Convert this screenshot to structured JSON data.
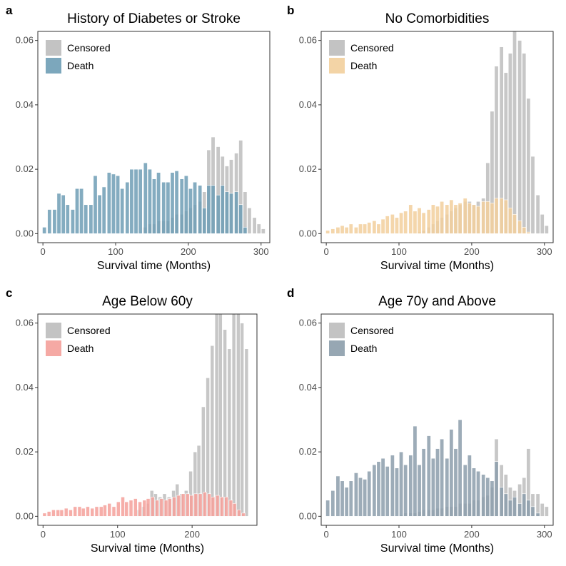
{
  "chart_data": [
    {
      "panel": "a",
      "type": "bar",
      "title": "History of Diabetes or Stroke",
      "xlabel": "Survival time (Months)",
      "ylabel": "",
      "xlim": [
        -7,
        312
      ],
      "ylim": [
        -0.0028,
        0.0628
      ],
      "xticks": [
        0,
        100,
        200,
        300
      ],
      "yticks": [
        0.0,
        0.02,
        0.04,
        0.06
      ],
      "ytick_labels": [
        "0.00",
        "0.02",
        "0.04",
        "0.06"
      ],
      "bin_width": 6.25,
      "legend": {
        "position": "top-left",
        "entries": [
          "Censored",
          "Death"
        ]
      },
      "colors": {
        "Censored": "#bdbdbd",
        "Death": "#6e9db5"
      },
      "series": [
        {
          "name": "Censored",
          "x": [
            140,
            147,
            153,
            160,
            166,
            172,
            178,
            184,
            191,
            197,
            203,
            209,
            216,
            222,
            228,
            234,
            241,
            247,
            253,
            259,
            266,
            272,
            278,
            284,
            291,
            297,
            303
          ],
          "values": [
            0.002,
            0.003,
            0.003,
            0.004,
            0.004,
            0.004,
            0.005,
            0.006,
            0.006,
            0.007,
            0.008,
            0.009,
            0.01,
            0.013,
            0.026,
            0.03,
            0.027,
            0.024,
            0.021,
            0.023,
            0.025,
            0.029,
            0.013,
            0.008,
            0.005,
            0.003,
            0.0015
          ]
        },
        {
          "name": "Death",
          "x": [
            2,
            9,
            16,
            22,
            28,
            34,
            41,
            47,
            53,
            59,
            66,
            72,
            78,
            84,
            91,
            97,
            103,
            109,
            116,
            122,
            128,
            134,
            141,
            147,
            153,
            159,
            166,
            172,
            178,
            184,
            191,
            197,
            203,
            209,
            216,
            222,
            228,
            234,
            241,
            247,
            253,
            259,
            266,
            272,
            278
          ],
          "values": [
            0.002,
            0.0075,
            0.0075,
            0.0125,
            0.012,
            0.009,
            0.0075,
            0.014,
            0.014,
            0.009,
            0.009,
            0.018,
            0.012,
            0.0145,
            0.019,
            0.0185,
            0.018,
            0.014,
            0.016,
            0.02,
            0.02,
            0.02,
            0.022,
            0.02,
            0.017,
            0.019,
            0.016,
            0.016,
            0.019,
            0.0195,
            0.017,
            0.018,
            0.014,
            0.016,
            0.015,
            0.008,
            0.015,
            0.015,
            0.012,
            0.015,
            0.013,
            0.0125,
            0.013,
            0.009,
            0.002
          ]
        }
      ]
    },
    {
      "panel": "b",
      "type": "bar",
      "title": "No Comorbidities",
      "xlabel": "Survival time (Months)",
      "ylabel": "",
      "xlim": [
        -7,
        312
      ],
      "ylim": [
        -0.0028,
        0.0628
      ],
      "xticks": [
        0,
        100,
        200,
        300
      ],
      "yticks": [
        0.0,
        0.02,
        0.04,
        0.06
      ],
      "ytick_labels": [
        "0.00",
        "0.02",
        "0.04",
        "0.06"
      ],
      "bin_width": 6.25,
      "legend": {
        "position": "top-left",
        "entries": [
          "Censored",
          "Death"
        ]
      },
      "colors": {
        "Censored": "#bdbdbd",
        "Death": "#f2cf9c"
      },
      "series": [
        {
          "name": "Censored",
          "x": [
            128,
            134,
            141,
            147,
            153,
            159,
            166,
            172,
            178,
            184,
            191,
            197,
            203,
            209,
            216,
            222,
            228,
            234,
            241,
            247,
            253,
            259,
            266,
            272,
            278,
            284,
            291,
            297,
            303
          ],
          "values": [
            0.0005,
            0.001,
            0.002,
            0.003,
            0.004,
            0.005,
            0.006,
            0.007,
            0.008,
            0.009,
            0.01,
            0.01,
            0.009,
            0.01,
            0.011,
            0.022,
            0.038,
            0.052,
            0.058,
            0.05,
            0.056,
            0.066,
            0.06,
            0.056,
            0.042,
            0.024,
            0.012,
            0.006,
            0.0025
          ]
        },
        {
          "name": "Death",
          "x": [
            2,
            9,
            16,
            22,
            28,
            34,
            41,
            47,
            53,
            59,
            66,
            72,
            78,
            84,
            91,
            97,
            103,
            109,
            116,
            122,
            128,
            134,
            141,
            147,
            153,
            159,
            166,
            172,
            178,
            184,
            191,
            197,
            203,
            209,
            216,
            222,
            228,
            234,
            241,
            247,
            253,
            259,
            266,
            272,
            278
          ],
          "values": [
            0.001,
            0.0015,
            0.002,
            0.0025,
            0.002,
            0.003,
            0.002,
            0.003,
            0.003,
            0.0035,
            0.004,
            0.003,
            0.0045,
            0.0055,
            0.006,
            0.005,
            0.0065,
            0.007,
            0.009,
            0.007,
            0.008,
            0.0065,
            0.0075,
            0.009,
            0.0085,
            0.01,
            0.009,
            0.0105,
            0.009,
            0.0095,
            0.011,
            0.0095,
            0.009,
            0.0085,
            0.01,
            0.01,
            0.0095,
            0.011,
            0.011,
            0.0105,
            0.008,
            0.006,
            0.004,
            0.002,
            0.0005
          ]
        }
      ]
    },
    {
      "panel": "c",
      "type": "bar",
      "title": "Age Below 60y",
      "xlabel": "Survival time (Months)",
      "ylabel": "",
      "xlim": [
        -7,
        287
      ],
      "ylim": [
        -0.0028,
        0.0628
      ],
      "xticks": [
        0,
        100,
        200
      ],
      "yticks": [
        0.0,
        0.02,
        0.04,
        0.06
      ],
      "ytick_labels": [
        "0.00",
        "0.02",
        "0.04",
        "0.06"
      ],
      "bin_width": 5.8,
      "legend": {
        "position": "top-left",
        "entries": [
          "Censored",
          "Death"
        ]
      },
      "colors": {
        "Censored": "#bdbdbd",
        "Death": "#f4a09a"
      },
      "series": [
        {
          "name": "Censored",
          "x": [
            128,
            134,
            140,
            146,
            151,
            157,
            163,
            169,
            175,
            180,
            186,
            192,
            198,
            204,
            209,
            215,
            221,
            227,
            233,
            238,
            244,
            250,
            256,
            262,
            267,
            273
          ],
          "values": [
            0.002,
            0.003,
            0.004,
            0.008,
            0.007,
            0.006,
            0.007,
            0.006,
            0.008,
            0.01,
            0.007,
            0.008,
            0.014,
            0.02,
            0.022,
            0.034,
            0.043,
            0.053,
            0.068,
            0.07,
            0.058,
            0.052,
            0.066,
            0.07,
            0.06,
            0.052
          ]
        },
        {
          "name": "Death",
          "x": [
            2,
            8,
            14,
            20,
            25,
            31,
            37,
            43,
            49,
            54,
            60,
            66,
            72,
            78,
            83,
            89,
            95,
            101,
            107,
            112,
            118,
            124,
            130,
            136,
            141,
            147,
            153,
            159,
            165,
            170,
            176,
            182,
            188,
            194,
            199,
            205,
            211,
            217,
            223,
            228,
            234,
            240,
            246,
            252,
            257,
            263,
            269
          ],
          "values": [
            0.001,
            0.0015,
            0.002,
            0.002,
            0.002,
            0.0025,
            0.002,
            0.003,
            0.003,
            0.0025,
            0.003,
            0.0025,
            0.003,
            0.003,
            0.0035,
            0.004,
            0.003,
            0.0045,
            0.006,
            0.0045,
            0.005,
            0.0055,
            0.0045,
            0.005,
            0.0055,
            0.006,
            0.005,
            0.0055,
            0.005,
            0.0055,
            0.006,
            0.0065,
            0.007,
            0.007,
            0.0065,
            0.007,
            0.007,
            0.0075,
            0.007,
            0.006,
            0.0065,
            0.006,
            0.006,
            0.005,
            0.004,
            0.002,
            0.001
          ]
        }
      ]
    },
    {
      "panel": "d",
      "type": "bar",
      "title": "Age 70y and Above",
      "xlabel": "Survival time (Months)",
      "ylabel": "",
      "xlim": [
        -7,
        312
      ],
      "ylim": [
        -0.0028,
        0.0628
      ],
      "xticks": [
        0,
        100,
        200,
        300
      ],
      "yticks": [
        0.0,
        0.02,
        0.04,
        0.06
      ],
      "ytick_labels": [
        "0.00",
        "0.02",
        "0.04",
        "0.06"
      ],
      "bin_width": 6.25,
      "legend": {
        "position": "top-left",
        "entries": [
          "Censored",
          "Death"
        ]
      },
      "colors": {
        "Censored": "#bdbdbd",
        "Death": "#8c9dab"
      },
      "series": [
        {
          "name": "Censored",
          "x": [
            103,
            109,
            116,
            122,
            128,
            134,
            141,
            147,
            153,
            159,
            166,
            172,
            178,
            184,
            191,
            197,
            203,
            209,
            216,
            222,
            228,
            234,
            241,
            247,
            253,
            259,
            266,
            272,
            278,
            284,
            291,
            297,
            303
          ],
          "values": [
            0.0005,
            0.001,
            0.001,
            0.001,
            0.0015,
            0.002,
            0.002,
            0.002,
            0.0025,
            0.0025,
            0.003,
            0.003,
            0.003,
            0.004,
            0.004,
            0.004,
            0.005,
            0.005,
            0.006,
            0.0065,
            0.009,
            0.024,
            0.016,
            0.013,
            0.009,
            0.008,
            0.01,
            0.012,
            0.021,
            0.007,
            0.007,
            0.004,
            0.003
          ]
        },
        {
          "name": "Death",
          "x": [
            2,
            9,
            16,
            22,
            28,
            34,
            41,
            47,
            53,
            59,
            66,
            72,
            78,
            84,
            91,
            97,
            103,
            109,
            116,
            122,
            128,
            134,
            141,
            147,
            153,
            159,
            166,
            172,
            178,
            184,
            191,
            197,
            203,
            209,
            216,
            222,
            228,
            234,
            241,
            247,
            253,
            259,
            266,
            272,
            278,
            284,
            291
          ],
          "values": [
            0.005,
            0.008,
            0.0125,
            0.011,
            0.009,
            0.011,
            0.0135,
            0.012,
            0.0115,
            0.014,
            0.016,
            0.017,
            0.018,
            0.0155,
            0.019,
            0.015,
            0.02,
            0.016,
            0.019,
            0.028,
            0.016,
            0.021,
            0.025,
            0.018,
            0.021,
            0.024,
            0.018,
            0.027,
            0.021,
            0.03,
            0.016,
            0.019,
            0.015,
            0.014,
            0.013,
            0.012,
            0.011,
            0.017,
            0.009,
            0.007,
            0.005,
            0.006,
            0.004,
            0.007,
            0.005,
            0.003,
            0.001
          ]
        }
      ]
    }
  ]
}
